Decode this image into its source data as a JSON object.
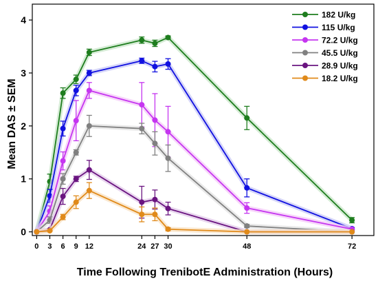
{
  "chart_data": {
    "type": "line",
    "title": "",
    "xlabel": "Time Following TrenibotE Administration (Hours)",
    "ylabel": "Mean DAS ± SEM",
    "xlim": [
      -1,
      77
    ],
    "ylim": [
      -0.07,
      4.3
    ],
    "xticks": [
      0,
      3,
      6,
      9,
      12,
      24,
      27,
      30,
      48,
      72
    ],
    "yticks": [
      0,
      1,
      2,
      3,
      4
    ],
    "grid": false,
    "legend_position": "top-right",
    "series": [
      {
        "name": "182 U/kg",
        "color": "#1e7d1e",
        "glow": "#c8e6c8",
        "x": [
          0,
          3,
          6,
          9,
          12,
          24,
          27,
          30,
          48,
          72
        ],
        "y": [
          0,
          0.95,
          2.62,
          2.88,
          3.39,
          3.62,
          3.56,
          3.67,
          2.15,
          0.22
        ],
        "err": [
          0,
          0.14,
          0.1,
          0.08,
          0.06,
          0.06,
          0.06,
          0.03,
          0.22,
          0.05
        ]
      },
      {
        "name": "115 U/kg",
        "color": "#1010e0",
        "glow": "#c8c8f5",
        "x": [
          0,
          3,
          6,
          9,
          12,
          24,
          27,
          30,
          48,
          72
        ],
        "y": [
          0,
          0.68,
          1.95,
          2.67,
          3.0,
          3.23,
          3.12,
          3.17,
          0.83,
          0.06
        ],
        "err": [
          0,
          0.12,
          0.14,
          0.1,
          0.05,
          0.05,
          0.1,
          0.1,
          0.17,
          0.02
        ]
      },
      {
        "name": "72.2 U/kg",
        "color": "#c535f0",
        "glow": "#f4c8f8",
        "x": [
          0,
          3,
          6,
          9,
          12,
          24,
          27,
          30,
          48,
          72
        ],
        "y": [
          0,
          0.39,
          1.34,
          2.1,
          2.67,
          2.4,
          2.11,
          1.89,
          0.45,
          0.05
        ],
        "err": [
          0,
          0.1,
          0.17,
          0.38,
          0.15,
          0.42,
          0.5,
          0.48,
          0.1,
          0.02
        ]
      },
      {
        "name": "45.5 U/kg",
        "color": "#808080",
        "glow": "#e2e2e2",
        "x": [
          0,
          3,
          6,
          9,
          12,
          24,
          27,
          30,
          48,
          72
        ],
        "y": [
          0,
          0.22,
          1.0,
          1.5,
          2.0,
          1.95,
          1.67,
          1.39,
          0.11,
          0.0
        ],
        "err": [
          0,
          0.06,
          0.1,
          0.05,
          0.2,
          0.1,
          0.22,
          0.25,
          0.03,
          0.0
        ]
      },
      {
        "name": "28.9 U/kg",
        "color": "#6a1480",
        "glow": "#e0c8e8",
        "x": [
          0,
          3,
          6,
          9,
          12,
          24,
          27,
          30,
          48,
          72
        ],
        "y": [
          0,
          0.04,
          0.67,
          1.0,
          1.17,
          0.56,
          0.61,
          0.44,
          0.0,
          0.0
        ],
        "err": [
          0,
          0.02,
          0.15,
          0.05,
          0.18,
          0.3,
          0.18,
          0.12,
          0.0,
          0.0
        ]
      },
      {
        "name": "18.2 U/kg",
        "color": "#e08a1a",
        "glow": "#f8e0c0",
        "x": [
          0,
          3,
          6,
          9,
          12,
          24,
          27,
          30,
          48,
          72
        ],
        "y": [
          0,
          0.02,
          0.28,
          0.56,
          0.78,
          0.33,
          0.33,
          0.05,
          0.0,
          0.0
        ],
        "err": [
          0,
          0.01,
          0.05,
          0.12,
          0.15,
          0.14,
          0.12,
          0.03,
          0.0,
          0.0
        ]
      }
    ]
  }
}
